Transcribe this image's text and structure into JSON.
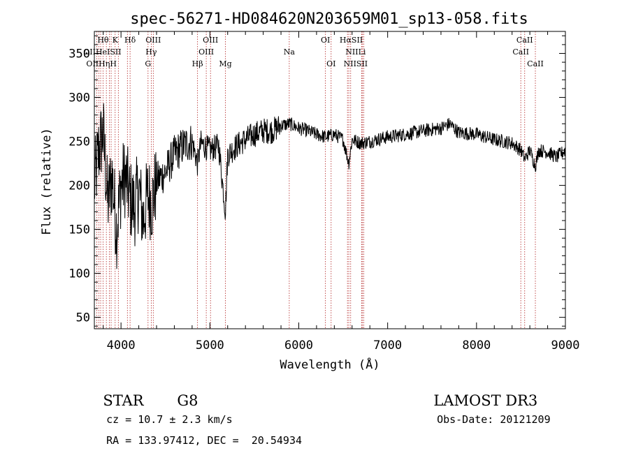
{
  "chart_data": {
    "type": "line",
    "title": "spec-56271-HD084620N203659M01_sp13-058.fits",
    "xlabel": "Wavelength (Å)",
    "ylabel": "Flux (relative)",
    "xlim": [
      3700,
      9000
    ],
    "ylim": [
      37,
      375
    ],
    "x_ticks": [
      4000,
      5000,
      6000,
      7000,
      8000,
      9000
    ],
    "y_ticks": [
      50,
      100,
      150,
      200,
      250,
      300,
      350
    ],
    "grid": false,
    "colors": {
      "spectrum": "#000000",
      "line_markers": "#b22222"
    },
    "series": [
      {
        "x": [
          3700,
          3750,
          3800,
          3850,
          3900,
          3950,
          4000,
          4050,
          4100,
          4150,
          4200,
          4250,
          4300,
          4350,
          4400,
          4500,
          4600,
          4700,
          4800,
          4860,
          4900,
          5000,
          5100,
          5175,
          5200,
          5300,
          5400,
          5500,
          5600,
          5700,
          5800,
          5900,
          6000,
          6100,
          6200,
          6300,
          6400,
          6500,
          6563,
          6600,
          6700,
          6800,
          7000,
          7200,
          7400,
          7600,
          7700,
          7800,
          8000,
          8200,
          8400,
          8500,
          8542,
          8600,
          8662,
          8700,
          8800,
          8900,
          9000
        ],
        "values": [
          200,
          240,
          260,
          180,
          210,
          150,
          200,
          210,
          185,
          175,
          195,
          160,
          190,
          180,
          205,
          215,
          235,
          245,
          250,
          225,
          248,
          240,
          245,
          170,
          235,
          245,
          252,
          258,
          262,
          262,
          268,
          270,
          265,
          262,
          258,
          255,
          258,
          252,
          225,
          252,
          248,
          250,
          255,
          258,
          262,
          265,
          270,
          260,
          258,
          252,
          248,
          240,
          230,
          240,
          222,
          240,
          238,
          232,
          240
        ]
      }
    ],
    "spectral_lines": {
      "top": [
        {
          "label": "Hθ",
          "x": 3798
        },
        {
          "label": "K",
          "x": 3934
        },
        {
          "label": "Hδ",
          "x": 4102
        },
        {
          "label": "OIII",
          "x": 4363
        },
        {
          "label": "OIII",
          "x": 5007
        },
        {
          "label": "OI",
          "x": 6300
        },
        {
          "label": "HαSII",
          "x": 6590
        },
        {
          "label": "CaII",
          "x": 8542
        }
      ],
      "upper": [
        {
          "label": "OIIHeISII",
          "x": 3790
        },
        {
          "label": "Hγ",
          "x": 4340
        },
        {
          "label": "OIII",
          "x": 4959
        },
        {
          "label": "Na",
          "x": 5893
        },
        {
          "label": "NIILi",
          "x": 6640
        },
        {
          "label": "CaII",
          "x": 8498
        }
      ],
      "lower": [
        {
          "label": "OIIHηH",
          "x": 3780
        },
        {
          "label": "G",
          "x": 4304
        },
        {
          "label": "Hβ",
          "x": 4861
        },
        {
          "label": "Mg",
          "x": 5175
        },
        {
          "label": "OI",
          "x": 6364
        },
        {
          "label": "NIISII",
          "x": 6640
        },
        {
          "label": "CaII",
          "x": 8662
        }
      ],
      "marker_x": [
        3727,
        3750,
        3771,
        3798,
        3835,
        3869,
        3889,
        3934,
        3970,
        4072,
        4102,
        4304,
        4340,
        4363,
        4861,
        4959,
        5007,
        5175,
        5893,
        6300,
        6364,
        6548,
        6563,
        6584,
        6708,
        6717,
        6731,
        8498,
        8542,
        8662
      ]
    }
  },
  "info": {
    "class_label": "STAR",
    "subclass": "G8",
    "survey": "LAMOST DR3",
    "cz": "cz = 10.7 ± 2.3 km/s",
    "obs_date": "Obs-Date: 20121209",
    "radec": "RA = 133.97412, DEC =  20.54934"
  }
}
